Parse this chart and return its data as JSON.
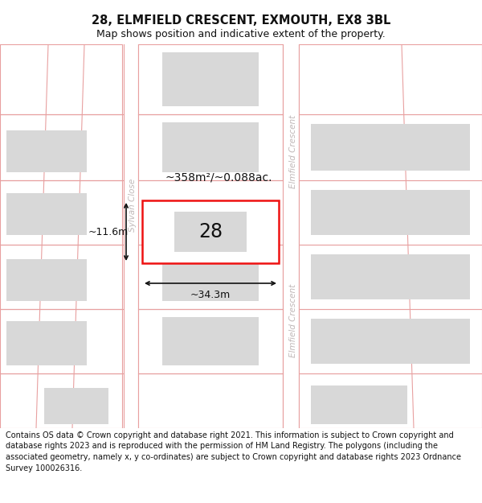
{
  "title": "28, ELMFIELD CRESCENT, EXMOUTH, EX8 3BL",
  "subtitle": "Map shows position and indicative extent of the property.",
  "footer": "Contains OS data © Crown copyright and database right 2021. This information is subject to Crown copyright and database rights 2023 and is reproduced with the permission of HM Land Registry. The polygons (including the associated geometry, namely x, y co-ordinates) are subject to Crown copyright and database rights 2023 Ordnance Survey 100026316.",
  "bg_color": "#ffffff",
  "parcel_edge": "#e8a0a0",
  "building_fill": "#d8d8d8",
  "highlight_fill": "#ffffff",
  "highlight_edge": "#ee1111",
  "highlight_lw": 1.8,
  "street_label_color": "#c0b8b8",
  "dim_color": "#111111",
  "area_label": "~358m²/~0.088ac.",
  "width_label": "~34.3m",
  "height_label": "~11.6m",
  "title_fontsize": 10.5,
  "subtitle_fontsize": 9,
  "footer_fontsize": 7.0
}
